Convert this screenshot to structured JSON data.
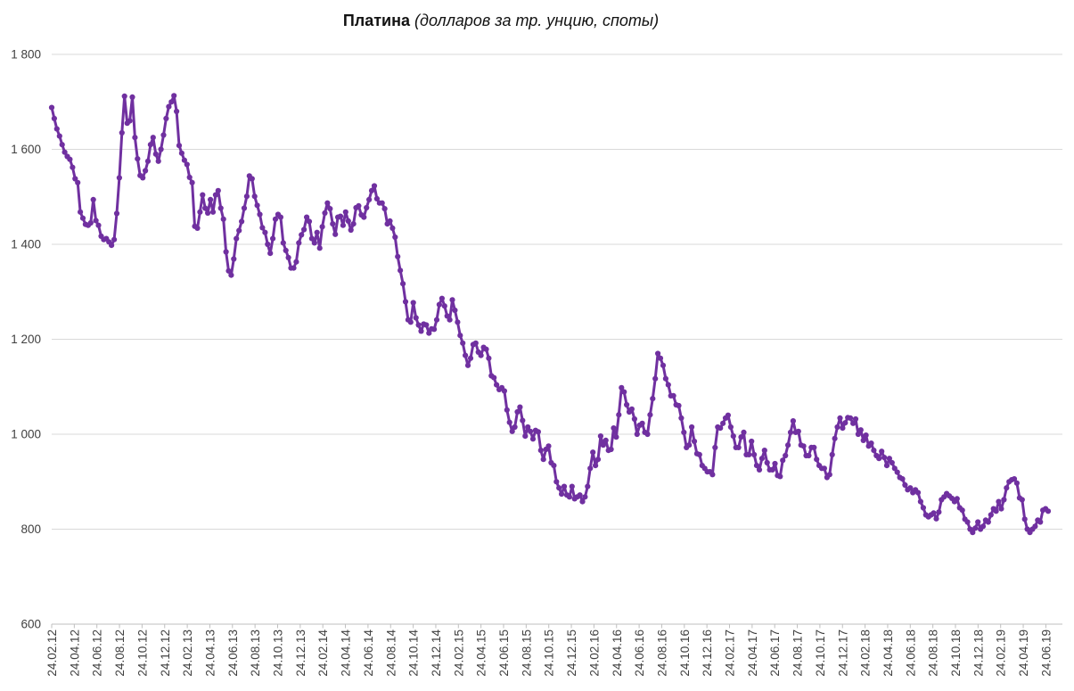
{
  "title": {
    "main": "Платина",
    "subtitle": "(долларов за тр. унцию, споты)"
  },
  "colors": {
    "series": "#7030A0",
    "grid": "#D9D9D9",
    "axis": "#BFBFBF",
    "label": "#404040",
    "background": "#FFFFFF"
  },
  "chart_data": {
    "type": "line",
    "title": "Платина (долларов за тр. унцию, споты)",
    "xlabel": "",
    "ylabel": "",
    "legend": "none",
    "grid": "horizontal",
    "ylim": [
      600,
      1800
    ],
    "yticks": [
      1800,
      1600,
      1400,
      1200,
      1000,
      800,
      600
    ],
    "ytick_labels": [
      "1 800",
      "1 600",
      "1 400",
      "1 200",
      "1 000",
      "800",
      "600"
    ],
    "x_frequency": "weekly",
    "x_tick_labels": [
      "24.02.12",
      "24.04.12",
      "24.06.12",
      "24.08.12",
      "24.10.12",
      "24.12.12",
      "24.02.13",
      "24.04.13",
      "24.06.13",
      "24.08.13",
      "24.10.13",
      "24.12.13",
      "24.02.14",
      "24.04.14",
      "24.06.14",
      "24.08.14",
      "24.10.14",
      "24.12.14",
      "24.02.15",
      "24.04.15",
      "24.06.15",
      "24.08.15",
      "24.10.15",
      "24.12.15",
      "24.02.16",
      "24.04.16",
      "24.06.16",
      "24.08.16",
      "24.10.16",
      "24.12.16",
      "24.02.17",
      "24.04.17",
      "24.06.17",
      "24.08.17",
      "24.10.17",
      "24.12.17",
      "24.02.18",
      "24.04.18",
      "24.06.18",
      "24.08.18",
      "24.10.18",
      "24.12.18",
      "24.02.19",
      "24.04.19",
      "24.06.19"
    ],
    "series": [
      {
        "name": "Платина, долларов за тройскую унцию (спот)",
        "color": "#7030A0",
        "marker": "circle",
        "first_point_label": "24.02.12",
        "last_point_label": "24.06.19",
        "values": [
          1688,
          1665,
          1643,
          1628,
          1610,
          1594,
          1585,
          1579,
          1562,
          1538,
          1530,
          1468,
          1455,
          1442,
          1440,
          1445,
          1494,
          1450,
          1440,
          1417,
          1410,
          1412,
          1405,
          1398,
          1410,
          1465,
          1540,
          1635,
          1712,
          1655,
          1660,
          1710,
          1625,
          1580,
          1545,
          1540,
          1555,
          1575,
          1610,
          1625,
          1590,
          1575,
          1600,
          1630,
          1665,
          1690,
          1700,
          1713,
          1680,
          1608,
          1592,
          1577,
          1568,
          1541,
          1530,
          1438,
          1434,
          1468,
          1504,
          1476,
          1466,
          1494,
          1468,
          1504,
          1513,
          1476,
          1453,
          1384,
          1344,
          1335,
          1369,
          1412,
          1429,
          1448,
          1476,
          1501,
          1544,
          1538,
          1501,
          1482,
          1463,
          1435,
          1425,
          1400,
          1381,
          1412,
          1453,
          1463,
          1457,
          1403,
          1387,
          1372,
          1350,
          1350,
          1363,
          1403,
          1420,
          1431,
          1457,
          1448,
          1412,
          1403,
          1425,
          1392,
          1437,
          1466,
          1487,
          1475,
          1443,
          1421,
          1457,
          1459,
          1440,
          1468,
          1449,
          1430,
          1443,
          1477,
          1481,
          1462,
          1457,
          1477,
          1494,
          1513,
          1523,
          1496,
          1487,
          1487,
          1475,
          1443,
          1449,
          1434,
          1415,
          1374,
          1345,
          1317,
          1279,
          1241,
          1236,
          1277,
          1245,
          1230,
          1217,
          1232,
          1230,
          1213,
          1222,
          1221,
          1241,
          1273,
          1286,
          1270,
          1249,
          1241,
          1283,
          1261,
          1236,
          1208,
          1192,
          1166,
          1145,
          1160,
          1189,
          1192,
          1173,
          1166,
          1183,
          1179,
          1160,
          1123,
          1119,
          1104,
          1094,
          1098,
          1091,
          1051,
          1025,
          1006,
          1015,
          1047,
          1057,
          1029,
          996,
          1015,
          1006,
          990,
          1008,
          1005,
          966,
          947,
          968,
          975,
          940,
          934,
          900,
          887,
          874,
          890,
          872,
          868,
          890,
          864,
          868,
          872,
          858,
          868,
          890,
          928,
          962,
          934,
          947,
          996,
          977,
          987,
          966,
          968,
          1013,
          994,
          1041,
          1098,
          1089,
          1062,
          1047,
          1053,
          1032,
          1000,
          1019,
          1023,
          1004,
          1000,
          1041,
          1075,
          1117,
          1170,
          1160,
          1145,
          1117,
          1104,
          1081,
          1081,
          1062,
          1060,
          1034,
          1004,
          972,
          977,
          1015,
          985,
          959,
          957,
          934,
          928,
          921,
          921,
          915,
          972,
          1015,
          1013,
          1023,
          1034,
          1040,
          1015,
          996,
          972,
          972,
          994,
          1004,
          957,
          957,
          985,
          957,
          934,
          925,
          949,
          966,
          940,
          925,
          925,
          938,
          913,
          911,
          945,
          955,
          977,
          1004,
          1028,
          1004,
          1006,
          977,
          975,
          955,
          955,
          972,
          972,
          947,
          934,
          928,
          928,
          909,
          915,
          957,
          991,
          1015,
          1034,
          1013,
          1024,
          1035,
          1034,
          1023,
          1032,
          1000,
          1009,
          987,
          998,
          975,
          981,
          966,
          955,
          949,
          964,
          951,
          934,
          949,
          940,
          928,
          920,
          909,
          906,
          893,
          883,
          887,
          877,
          883,
          877,
          858,
          845,
          830,
          826,
          830,
          834,
          822,
          836,
          862,
          868,
          875,
          870,
          865,
          858,
          864,
          845,
          840,
          821,
          815,
          800,
          793,
          802,
          815,
          800,
          806,
          819,
          815,
          830,
          843,
          838,
          858,
          843,
          862,
          887,
          900,
          904,
          906,
          897,
          866,
          862,
          821,
          800,
          793,
          800,
          806,
          819,
          815,
          840,
          843,
          838
        ]
      }
    ]
  }
}
